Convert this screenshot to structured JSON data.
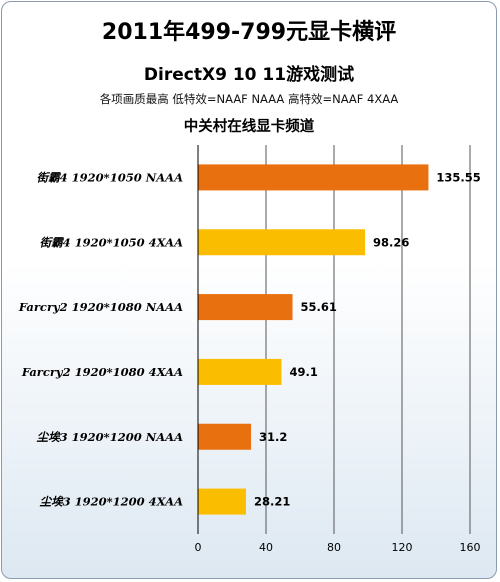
{
  "chart_data": {
    "type": "bar",
    "orientation": "horizontal",
    "title": "2011年499-799元显卡横评",
    "subtitle": "DirectX9 10 11游戏测试",
    "note": "各项画质最高 低特效=NAAF NAAA 高特效=NAAF 4XAA",
    "source": "中关村在线显卡频道",
    "categories": [
      "街霸4 1920*1050 NAAA",
      "街霸4 1920*1050 4XAA",
      "Farcry2 1920*1080 NAAA",
      "Farcry2 1920*1080 4XAA",
      "尘埃3 1920*1200 NAAA",
      "尘埃3 1920*1200 4XAA"
    ],
    "values": [
      135.55,
      98.26,
      55.61,
      49.1,
      31.2,
      28.21
    ],
    "value_labels": [
      "135.55",
      "98.26",
      "55.61",
      "49.1",
      "31.2",
      "28.21"
    ],
    "bar_colors": [
      "#e8700f",
      "#fbbd00",
      "#e8700f",
      "#fbbd00",
      "#e8700f",
      "#fbbd00"
    ],
    "xlim": [
      0,
      160
    ],
    "xticks": [
      0,
      40,
      80,
      120,
      160
    ],
    "xtick_labels": [
      "0",
      "40",
      "80",
      "120",
      "160"
    ],
    "grid": true,
    "legend": "none"
  }
}
